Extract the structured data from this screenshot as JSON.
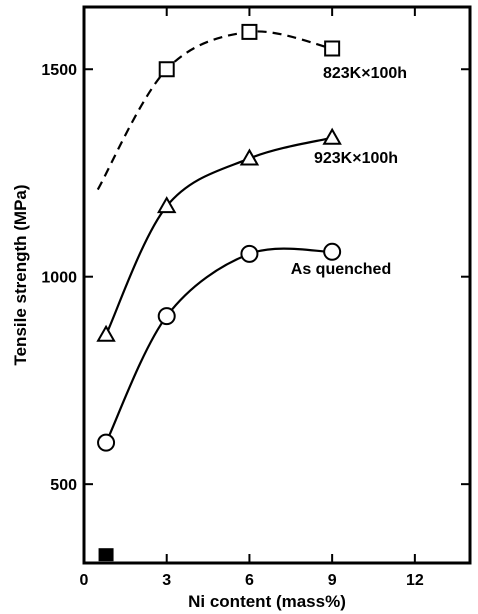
{
  "chart_data": {
    "type": "line",
    "xlabel": "Ni content (mass%)",
    "ylabel": "Tensile strength (MPa)",
    "xlim": [
      0,
      14
    ],
    "ylim": [
      310,
      1650
    ],
    "xticks": [
      0,
      3,
      6,
      9,
      12
    ],
    "yticks": [
      500,
      1000,
      1500
    ],
    "grid": false,
    "series": [
      {
        "name": "823K×100h",
        "marker": "open-square",
        "line_style": "dashed",
        "x": [
          3,
          6,
          9
        ],
        "y": [
          1500,
          1590,
          1550
        ],
        "curve_extension": {
          "x": 0.5,
          "y": 1210
        }
      },
      {
        "name": "923K×100h",
        "marker": "open-triangle",
        "line_style": "solid",
        "x": [
          0.8,
          3,
          6,
          9
        ],
        "y": [
          860,
          1170,
          1285,
          1335
        ]
      },
      {
        "name": "As quenched",
        "marker": "open-circle",
        "line_style": "solid",
        "x": [
          0.8,
          3,
          6,
          9
        ],
        "y": [
          600,
          905,
          1055,
          1060
        ]
      }
    ],
    "extra_points": [
      {
        "marker": "filled-square",
        "x": 0.8,
        "y": 330
      }
    ]
  }
}
